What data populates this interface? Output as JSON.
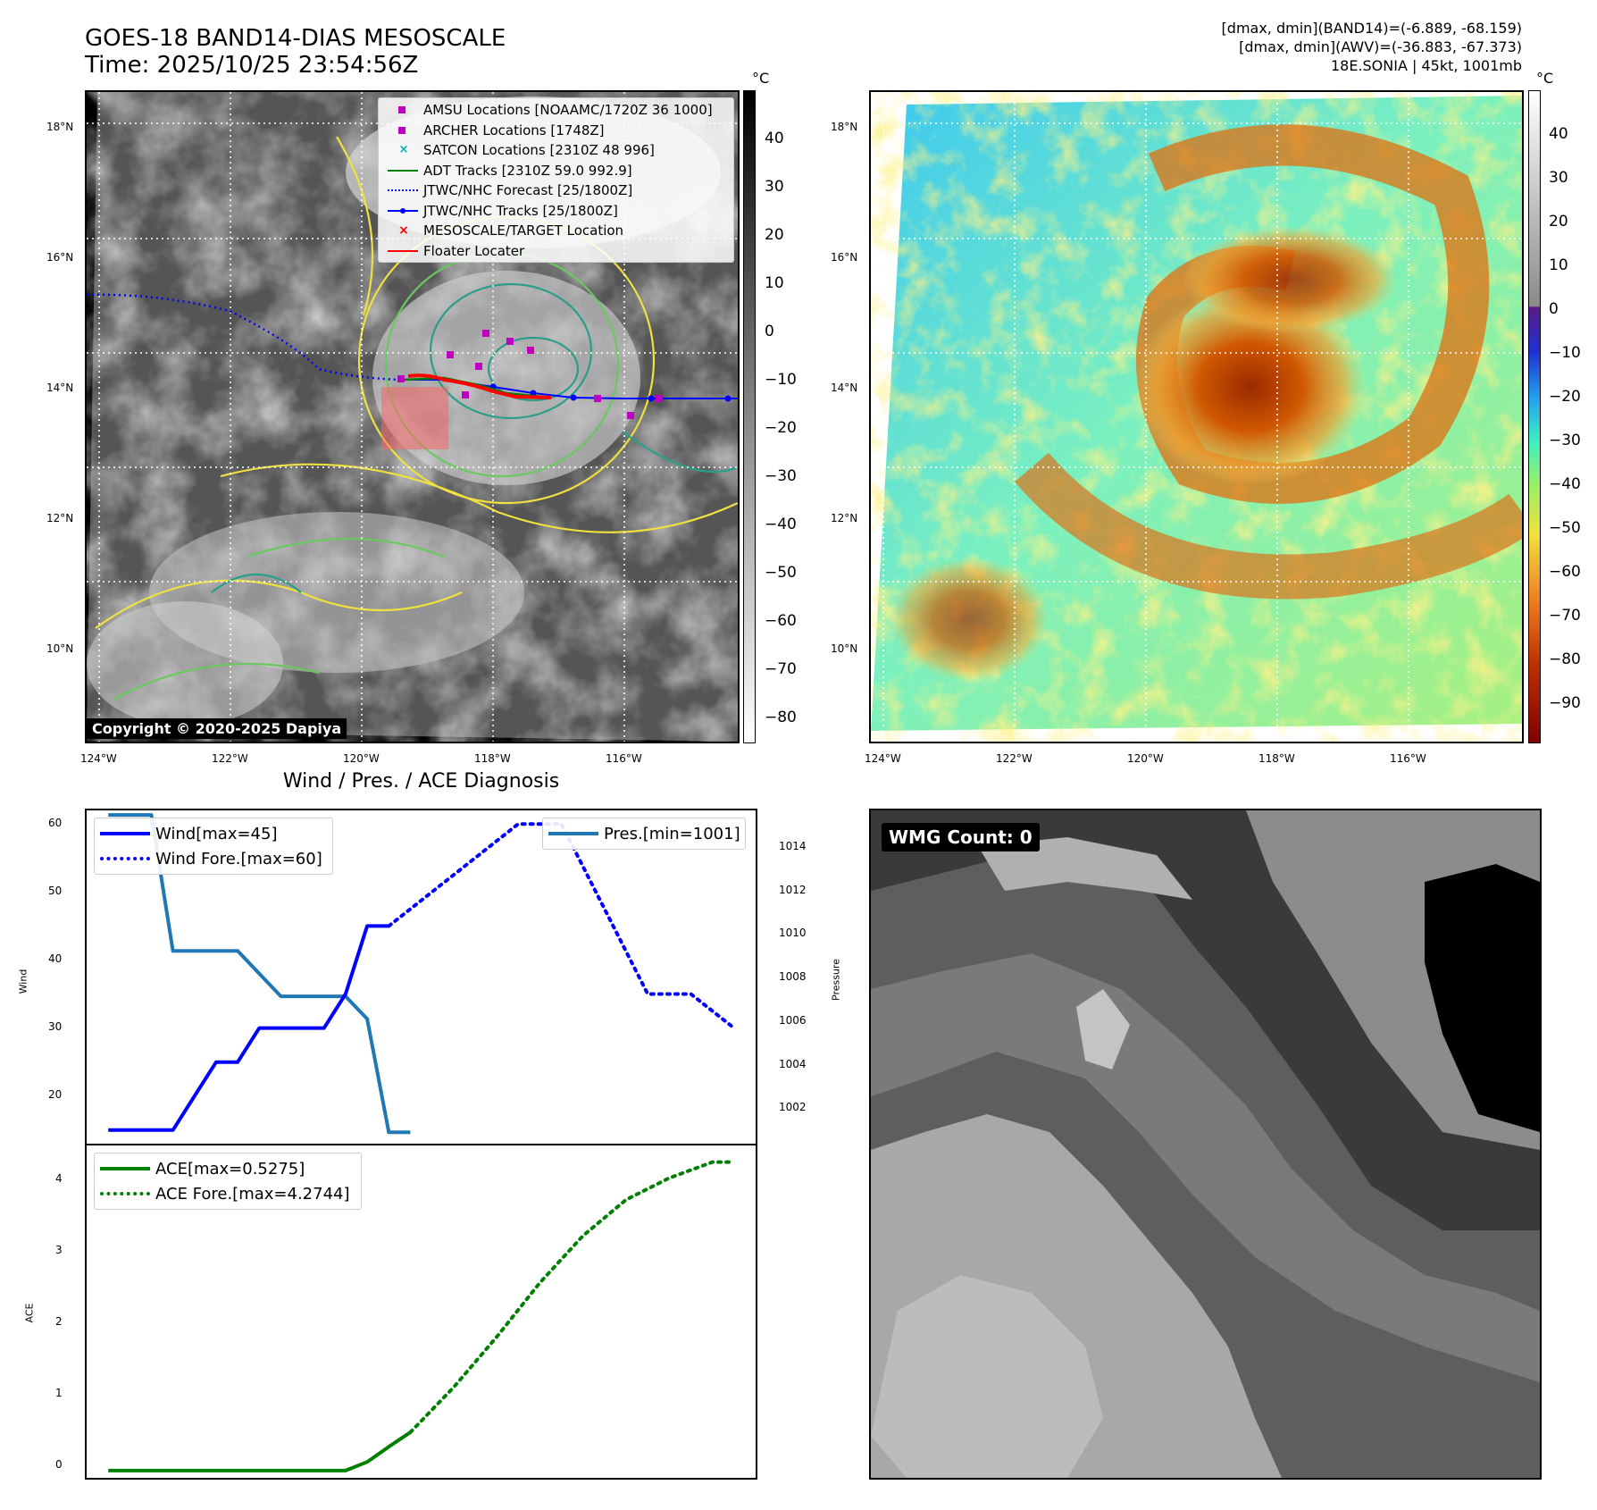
{
  "header": {
    "title_line1": "GOES-18 BAND14-DIAS MESOSCALE",
    "title_line2": "Time: 2025/10/25 23:54:56Z",
    "info_line1": "[dmax, dmin](BAND14)=(-6.889, -68.159)",
    "info_line2": "[dmax, dmin](AWV)=(-36.883, -67.373)",
    "info_line3": "18E.SONIA | 45kt, 1001mb"
  },
  "ir_map": {
    "lon_labels": [
      "124°W",
      "122°W",
      "120°W",
      "118°W",
      "116°W"
    ],
    "lat_labels": [
      "18°N",
      "16°N",
      "14°N",
      "12°N",
      "10°N"
    ],
    "colorbar_unit": "°C",
    "colorbar_ticks": [
      "40",
      "30",
      "20",
      "10",
      "0",
      "−10",
      "−20",
      "−30",
      "−40",
      "−50",
      "−60",
      "−70",
      "−80"
    ],
    "copyright": "Copyright © 2020-2025 Dapiya",
    "legend": [
      {
        "label": "AMSU Locations [NOAAMC/1720Z 36 1000]",
        "color": "#c000c0",
        "symbol": "square"
      },
      {
        "label": "ARCHER Locations [1748Z]",
        "color": "#c000c0",
        "symbol": "square"
      },
      {
        "label": "SATCON Locations [2310Z 48 996]",
        "color": "#00b0b0",
        "symbol": "x"
      },
      {
        "label": "ADT Tracks [2310Z 59.0 992.9]",
        "color": "#008000",
        "symbol": "line"
      },
      {
        "label": "JTWC/NHC Forecast [25/1800Z]",
        "color": "#0000ff",
        "symbol": "dotted"
      },
      {
        "label": "JTWC/NHC Tracks [25/1800Z]",
        "color": "#0000ff",
        "symbol": "line-dot"
      },
      {
        "label": "MESOSCALE/TARGET Location",
        "color": "#ff0000",
        "symbol": "x"
      },
      {
        "label": "Floater Locater",
        "color": "#ff0000",
        "symbol": "line"
      }
    ]
  },
  "awv_map": {
    "lon_labels": [
      "124°W",
      "122°W",
      "120°W",
      "118°W",
      "116°W"
    ],
    "lat_labels": [
      "18°N",
      "16°N",
      "14°N",
      "12°N",
      "10°N"
    ],
    "colorbar_unit": "°C",
    "colorbar_ticks": [
      "40",
      "30",
      "20",
      "10",
      "0",
      "−10",
      "−20",
      "−30",
      "−40",
      "−50",
      "−60",
      "−70",
      "−80",
      "−90"
    ]
  },
  "diagnosis": {
    "title": "Wind / Pres. / ACE Diagnosis",
    "wind_ylabel": "Wind",
    "pres_ylabel": "Pressure",
    "ace_ylabel": "ACE",
    "wind_ticks": [
      "60",
      "50",
      "40",
      "30",
      "20"
    ],
    "pres_ticks": [
      "1014",
      "1012",
      "1010",
      "1008",
      "1006",
      "1004",
      "1002"
    ],
    "ace_ticks": [
      "4",
      "3",
      "2",
      "1",
      "0"
    ],
    "legend_wind": "Wind[max=45]",
    "legend_wind_fore": "Wind Fore.[max=60]",
    "legend_pres": "Pres.[min=1001]",
    "legend_ace": "ACE[max=0.5275]",
    "legend_ace_fore": "ACE Fore.[max=4.2744]"
  },
  "chart_data": [
    {
      "type": "line",
      "title": "Wind / Pres. / ACE Diagnosis",
      "ylabel": "Wind",
      "ylim": [
        13,
        62
      ],
      "x": [
        0,
        1,
        2,
        3,
        4,
        5,
        6,
        7,
        8,
        9,
        10,
        11,
        12,
        13
      ],
      "series": [
        {
          "name": "Wind[max=45]",
          "color": "#0000ff",
          "style": "solid",
          "x": [
            0,
            1,
            2,
            3,
            4,
            5,
            6,
            7,
            8,
            9,
            10,
            11,
            12,
            13
          ],
          "values": [
            15,
            15,
            15,
            15,
            20,
            25,
            25,
            30,
            30,
            30,
            30,
            35,
            45,
            45
          ]
        },
        {
          "name": "Wind Fore.[max=60]",
          "color": "#0000ff",
          "style": "dotted",
          "x": [
            13,
            19,
            21,
            25,
            27,
            29
          ],
          "values": [
            45,
            60,
            60,
            35,
            35,
            30
          ]
        }
      ]
    },
    {
      "type": "line",
      "ylabel": "Pressure",
      "ylim": [
        1000.5,
        1015.2
      ],
      "series": [
        {
          "name": "Pres.[min=1001]",
          "color": "#1f77b4",
          "style": "solid",
          "x": [
            0,
            2,
            3,
            6,
            8,
            11,
            12,
            13,
            14
          ],
          "values": [
            1015,
            1015,
            1009,
            1009,
            1007,
            1007,
            1006,
            1001,
            1001
          ]
        }
      ]
    },
    {
      "type": "line",
      "ylabel": "ACE",
      "ylim": [
        -0.1,
        4.5
      ],
      "series": [
        {
          "name": "ACE[max=0.5275]",
          "color": "#008000",
          "style": "solid",
          "x": [
            0,
            1,
            5,
            10,
            11,
            12,
            13,
            14
          ],
          "values": [
            0,
            0,
            0,
            0,
            0,
            0.12,
            0.33,
            0.53
          ]
        },
        {
          "name": "ACE Fore.[max=4.2744]",
          "color": "#008000",
          "style": "dotted",
          "x": [
            14,
            16,
            18,
            20,
            22,
            24,
            26,
            28,
            29
          ],
          "values": [
            0.53,
            1.15,
            1.85,
            2.6,
            3.25,
            3.75,
            4.05,
            4.27,
            4.27
          ]
        }
      ]
    }
  ],
  "wmg": {
    "label": "WMG Count: 0"
  }
}
